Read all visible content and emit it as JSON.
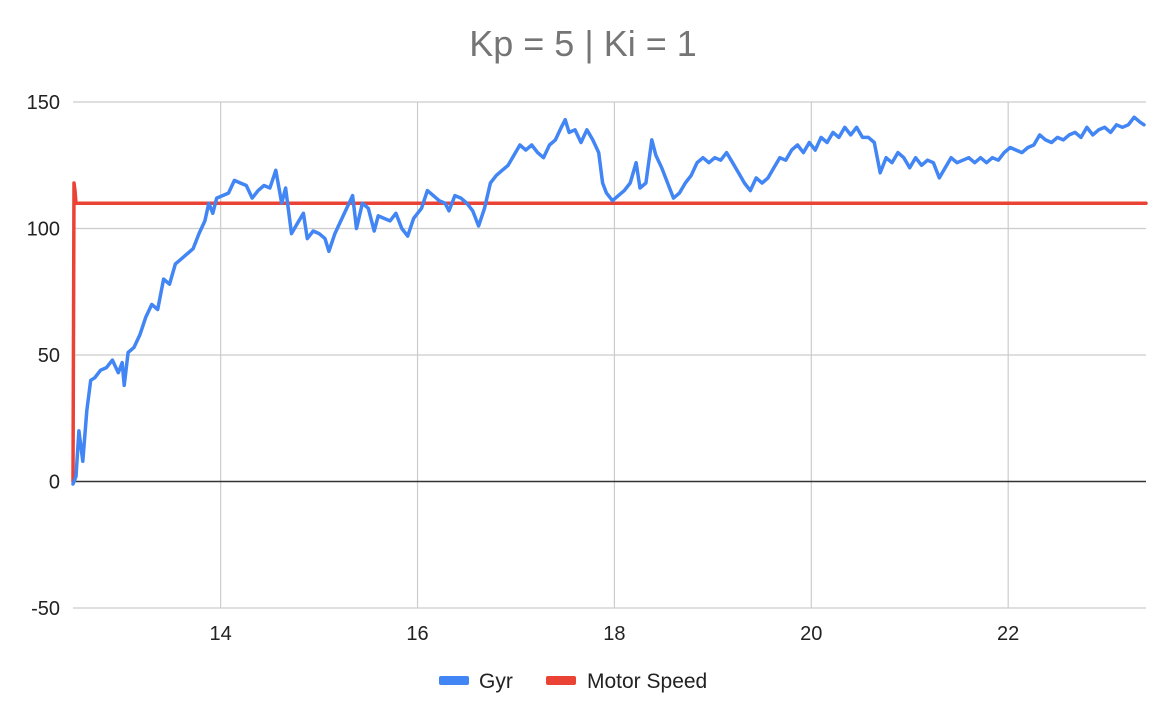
{
  "chart_data": {
    "type": "line",
    "title": "Kp = 5 |  Ki = 1",
    "xlabel": "",
    "ylabel": "",
    "xlim": [
      12.5,
      23.4
    ],
    "ylim": [
      -50,
      150
    ],
    "xticks": [
      14,
      16,
      18,
      20,
      22
    ],
    "yticks": [
      -50,
      0,
      50,
      100,
      150
    ],
    "xtick_labels": [
      "14",
      "16",
      "18",
      "20",
      "22"
    ],
    "ytick_labels": [
      "-50",
      "0",
      "50",
      "100",
      "150"
    ],
    "grid": true,
    "legend_position": "bottom",
    "series": [
      {
        "name": "Gyr",
        "color": "#4285f4",
        "points": [
          [
            12.5,
            -1
          ],
          [
            12.53,
            2
          ],
          [
            12.56,
            20
          ],
          [
            12.6,
            8
          ],
          [
            12.64,
            28
          ],
          [
            12.68,
            40
          ],
          [
            12.72,
            41
          ],
          [
            12.78,
            44
          ],
          [
            12.84,
            45
          ],
          [
            12.9,
            48
          ],
          [
            12.96,
            43
          ],
          [
            13.0,
            47
          ],
          [
            13.02,
            38
          ],
          [
            13.06,
            51
          ],
          [
            13.12,
            53
          ],
          [
            13.18,
            58
          ],
          [
            13.24,
            65
          ],
          [
            13.3,
            70
          ],
          [
            13.36,
            68
          ],
          [
            13.42,
            80
          ],
          [
            13.48,
            78
          ],
          [
            13.54,
            86
          ],
          [
            13.6,
            88
          ],
          [
            13.66,
            90
          ],
          [
            13.72,
            92
          ],
          [
            13.78,
            98
          ],
          [
            13.84,
            103
          ],
          [
            13.88,
            110
          ],
          [
            13.92,
            106
          ],
          [
            13.96,
            112
          ],
          [
            14.02,
            113
          ],
          [
            14.08,
            114
          ],
          [
            14.14,
            119
          ],
          [
            14.2,
            118
          ],
          [
            14.26,
            117
          ],
          [
            14.32,
            112
          ],
          [
            14.38,
            115
          ],
          [
            14.44,
            117
          ],
          [
            14.5,
            116
          ],
          [
            14.56,
            123
          ],
          [
            14.62,
            110
          ],
          [
            14.66,
            116
          ],
          [
            14.72,
            98
          ],
          [
            14.78,
            102
          ],
          [
            14.84,
            106
          ],
          [
            14.88,
            96
          ],
          [
            14.94,
            99
          ],
          [
            15.0,
            98
          ],
          [
            15.06,
            96
          ],
          [
            15.1,
            91
          ],
          [
            15.16,
            98
          ],
          [
            15.22,
            103
          ],
          [
            15.28,
            108
          ],
          [
            15.34,
            113
          ],
          [
            15.38,
            100
          ],
          [
            15.44,
            110
          ],
          [
            15.5,
            108
          ],
          [
            15.56,
            99
          ],
          [
            15.6,
            105
          ],
          [
            15.66,
            104
          ],
          [
            15.72,
            103
          ],
          [
            15.78,
            106
          ],
          [
            15.84,
            100
          ],
          [
            15.9,
            97
          ],
          [
            15.96,
            104
          ],
          [
            16.04,
            108
          ],
          [
            16.1,
            115
          ],
          [
            16.16,
            113
          ],
          [
            16.22,
            111
          ],
          [
            16.28,
            110
          ],
          [
            16.32,
            107
          ],
          [
            16.38,
            113
          ],
          [
            16.44,
            112
          ],
          [
            16.5,
            110
          ],
          [
            16.56,
            107
          ],
          [
            16.62,
            101
          ],
          [
            16.68,
            108
          ],
          [
            16.74,
            118
          ],
          [
            16.8,
            121
          ],
          [
            16.86,
            123
          ],
          [
            16.92,
            125
          ],
          [
            16.98,
            129
          ],
          [
            17.04,
            133
          ],
          [
            17.1,
            131
          ],
          [
            17.16,
            133
          ],
          [
            17.22,
            130
          ],
          [
            17.28,
            128
          ],
          [
            17.34,
            133
          ],
          [
            17.4,
            135
          ],
          [
            17.46,
            140
          ],
          [
            17.5,
            143
          ],
          [
            17.54,
            138
          ],
          [
            17.6,
            139
          ],
          [
            17.66,
            134
          ],
          [
            17.72,
            139
          ],
          [
            17.78,
            135
          ],
          [
            17.84,
            130
          ],
          [
            17.88,
            118
          ],
          [
            17.92,
            114
          ],
          [
            17.98,
            111
          ],
          [
            18.04,
            113
          ],
          [
            18.1,
            115
          ],
          [
            18.16,
            118
          ],
          [
            18.22,
            126
          ],
          [
            18.26,
            116
          ],
          [
            18.32,
            118
          ],
          [
            18.38,
            135
          ],
          [
            18.42,
            129
          ],
          [
            18.48,
            124
          ],
          [
            18.54,
            118
          ],
          [
            18.6,
            112
          ],
          [
            18.66,
            114
          ],
          [
            18.72,
            118
          ],
          [
            18.78,
            121
          ],
          [
            18.84,
            126
          ],
          [
            18.9,
            128
          ],
          [
            18.96,
            126
          ],
          [
            19.02,
            128
          ],
          [
            19.08,
            127
          ],
          [
            19.14,
            130
          ],
          [
            19.2,
            126
          ],
          [
            19.26,
            122
          ],
          [
            19.32,
            118
          ],
          [
            19.38,
            115
          ],
          [
            19.44,
            120
          ],
          [
            19.5,
            118
          ],
          [
            19.56,
            120
          ],
          [
            19.62,
            124
          ],
          [
            19.68,
            128
          ],
          [
            19.74,
            127
          ],
          [
            19.8,
            131
          ],
          [
            19.86,
            133
          ],
          [
            19.92,
            130
          ],
          [
            19.98,
            134
          ],
          [
            20.04,
            131
          ],
          [
            20.1,
            136
          ],
          [
            20.16,
            134
          ],
          [
            20.22,
            138
          ],
          [
            20.28,
            136
          ],
          [
            20.34,
            140
          ],
          [
            20.4,
            137
          ],
          [
            20.46,
            140
          ],
          [
            20.52,
            136
          ],
          [
            20.58,
            136
          ],
          [
            20.64,
            134
          ],
          [
            20.7,
            122
          ],
          [
            20.76,
            128
          ],
          [
            20.82,
            126
          ],
          [
            20.88,
            130
          ],
          [
            20.94,
            128
          ],
          [
            21.0,
            124
          ],
          [
            21.06,
            128
          ],
          [
            21.12,
            125
          ],
          [
            21.18,
            127
          ],
          [
            21.24,
            126
          ],
          [
            21.3,
            120
          ],
          [
            21.36,
            124
          ],
          [
            21.42,
            128
          ],
          [
            21.48,
            126
          ],
          [
            21.54,
            127
          ],
          [
            21.6,
            128
          ],
          [
            21.66,
            126
          ],
          [
            21.72,
            128
          ],
          [
            21.78,
            126
          ],
          [
            21.84,
            128
          ],
          [
            21.9,
            127
          ],
          [
            21.96,
            130
          ],
          [
            22.02,
            132
          ],
          [
            22.08,
            131
          ],
          [
            22.14,
            130
          ],
          [
            22.2,
            132
          ],
          [
            22.26,
            133
          ],
          [
            22.32,
            137
          ],
          [
            22.38,
            135
          ],
          [
            22.44,
            134
          ],
          [
            22.5,
            136
          ],
          [
            22.56,
            135
          ],
          [
            22.62,
            137
          ],
          [
            22.68,
            138
          ],
          [
            22.74,
            136
          ],
          [
            22.8,
            140
          ],
          [
            22.86,
            137
          ],
          [
            22.92,
            139
          ],
          [
            22.98,
            140
          ],
          [
            23.04,
            138
          ],
          [
            23.1,
            141
          ],
          [
            23.16,
            140
          ],
          [
            23.22,
            141
          ],
          [
            23.28,
            144
          ],
          [
            23.34,
            142
          ],
          [
            23.38,
            141
          ]
        ]
      },
      {
        "name": "Motor Speed",
        "color": "#ea4335",
        "points": [
          [
            12.5,
            0
          ],
          [
            12.51,
            118
          ],
          [
            12.52,
            115
          ],
          [
            12.53,
            110
          ],
          [
            23.4,
            110
          ]
        ]
      }
    ]
  }
}
